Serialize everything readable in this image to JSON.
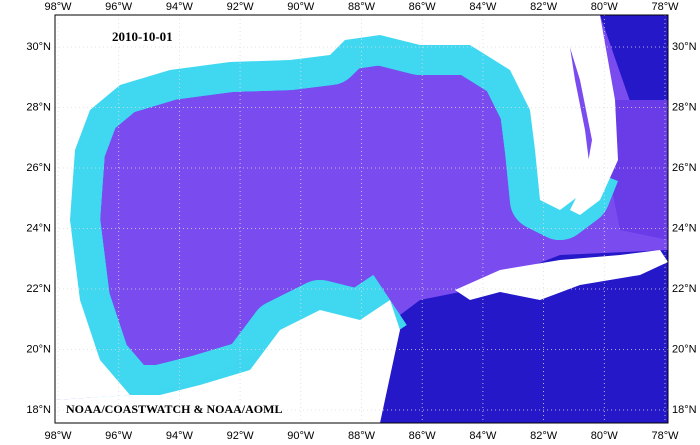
{
  "map": {
    "date": "2010-10-01",
    "credit": "NOAA/COASTWATCH & NOAA/AOML",
    "longitude_labels": [
      "98°W",
      "96°W",
      "94°W",
      "92°W",
      "90°W",
      "88°W",
      "86°W",
      "84°W",
      "82°W",
      "80°W",
      "78°W"
    ],
    "latitude_labels": [
      "30°N",
      "28°N",
      "26°N",
      "24°N",
      "22°N",
      "20°N",
      "18°N"
    ]
  }
}
